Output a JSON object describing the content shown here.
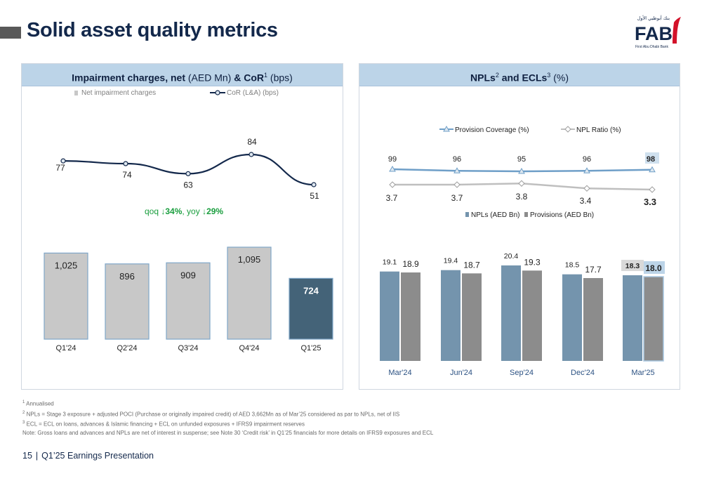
{
  "page": {
    "title": "Solid asset quality metrics",
    "logo_text": "FAB",
    "logo_subtext": "First Abu Dhabi Bank",
    "logo_arabic": "بنك أبوظبي الأول",
    "footer_page": "15",
    "footer_sep": "|",
    "footer_text": "Q1’25 Earnings Presentation"
  },
  "left_panel": {
    "title_bold": "Impairment charges, net",
    "title_unit": "(AED Mn)",
    "title_amp": "&",
    "title_cor": "CoR",
    "title_cor_sup": "1",
    "title_bps": "(bps)",
    "change_qoq_label": "qoq",
    "change_qoq_value": "34%",
    "change_yoy_label": "yoy",
    "change_yoy_value": "29%",
    "change_comma": ","
  },
  "right_panel": {
    "title_npl": "NPLs",
    "title_npl_sup": "2",
    "title_and": "and",
    "title_ecl": "ECLs",
    "title_ecl_sup": "3",
    "title_pct": "(%)"
  },
  "footnotes": [
    {
      "sup": "1",
      "text": "Annualised"
    },
    {
      "sup": "2",
      "text": "NPLs = Stage 3 exposure + adjusted POCI (Purchase or originally impaired credit) of AED 3,662Mn as of Mar’25 considered as par to NPLs, net of IIS"
    },
    {
      "sup": "3",
      "text": "ECL = ECL on loans, advances & Islamic financing + ECL on unfunded exposures + IFRS9 impairment reserves"
    },
    {
      "sup": "",
      "text": "Note: Gross loans and advances and NPLs are net of interest in suspense; see Note 30 ‘Credit risk’ in Q1’25 financials for more details on IFRS9 exposures and ECL"
    }
  ],
  "colors": {
    "navy": "#13284b",
    "bar_grey": "#c8c8c8",
    "bar_highlight": "#446378",
    "line_cor": "#13284b",
    "line_coverage": "#6f9fc8",
    "line_npl": "#bfbfbf",
    "bar_npl": "#7494ad",
    "bar_prov": "#8c8c8c",
    "green": "#1a9e3e",
    "month_blue": "#2c5283"
  },
  "chart_data": [
    {
      "type": "bar",
      "categories": [
        "Q1'24",
        "Q2'24",
        "Q3'24",
        "Q4'24",
        "Q1'25"
      ],
      "series": [
        {
          "name": "Net impairment charges",
          "values": [
            1025,
            896,
            909,
            1095,
            724
          ],
          "labels": [
            "1,025",
            "896",
            "909",
            "1,095",
            "724"
          ]
        }
      ],
      "overlay_line": {
        "name": "CoR (L&A) (bps)",
        "values": [
          77,
          74,
          63,
          84,
          51
        ]
      },
      "legend": "top-left"
    },
    {
      "type": "bar",
      "categories": [
        "Mar'24",
        "Jun'24",
        "Sep'24",
        "Dec'24",
        "Mar'25"
      ],
      "series": [
        {
          "name": "NPLs (AED Bn)",
          "values": [
            19.1,
            19.4,
            20.4,
            18.5,
            18.3
          ]
        },
        {
          "name": "Provisions (AED Bn)",
          "values": [
            18.9,
            18.7,
            19.3,
            17.7,
            18.0
          ]
        }
      ],
      "lines": [
        {
          "name": "Provision Coverage (%)",
          "values": [
            99,
            96,
            95,
            96,
            98
          ]
        },
        {
          "name": "NPL Ratio (%)",
          "values": [
            3.7,
            3.7,
            3.8,
            3.4,
            3.3
          ]
        }
      ],
      "legend": "top-center"
    }
  ]
}
